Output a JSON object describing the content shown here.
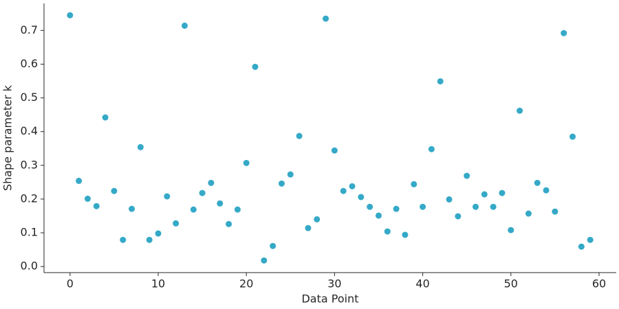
{
  "chart_data": {
    "type": "scatter",
    "xlabel": "Data Point",
    "ylabel": "Shape parameter k",
    "color": "#35a9c7",
    "x": [
      0,
      1,
      2,
      3,
      4,
      5,
      6,
      7,
      8,
      9,
      10,
      11,
      12,
      13,
      14,
      15,
      16,
      17,
      18,
      19,
      20,
      21,
      22,
      23,
      24,
      25,
      26,
      27,
      28,
      29,
      30,
      31,
      32,
      33,
      34,
      35,
      36,
      37,
      38,
      39,
      40,
      41,
      42,
      43,
      44,
      45,
      46,
      47,
      48,
      49,
      50,
      51,
      52,
      53,
      54,
      55,
      56,
      57,
      58,
      59
    ],
    "values": [
      0.745,
      0.254,
      0.201,
      0.179,
      0.442,
      0.224,
      0.079,
      0.171,
      0.354,
      0.079,
      0.098,
      0.208,
      0.128,
      0.714,
      0.169,
      0.218,
      0.248,
      0.187,
      0.126,
      0.169,
      0.307,
      0.592,
      0.018,
      0.061,
      0.246,
      0.273,
      0.387,
      0.114,
      0.14,
      0.735,
      0.344,
      0.224,
      0.238,
      0.206,
      0.177,
      0.151,
      0.104,
      0.171,
      0.094,
      0.244,
      0.177,
      0.348,
      0.549,
      0.199,
      0.149,
      0.269,
      0.177,
      0.214,
      0.177,
      0.218,
      0.108,
      0.462,
      0.157,
      0.248,
      0.226,
      0.163,
      0.692,
      0.385,
      0.059,
      0.079
    ],
    "xlim": [
      -2.95,
      61.95
    ],
    "xticks": [
      0,
      10,
      20,
      30,
      40,
      50,
      60
    ],
    "ylim": [
      -0.018,
      0.78
    ],
    "yticks": [
      {
        "value": 0,
        "label": "0.0"
      },
      0.1,
      0.2,
      0.3,
      0.4,
      0.5,
      0.6,
      0.7
    ]
  }
}
